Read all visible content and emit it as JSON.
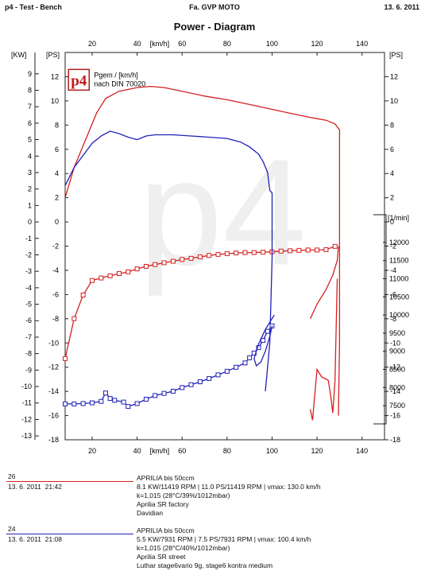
{
  "header": {
    "left": "p4 - Test - Bench",
    "center": "Fa. GVP MOTO",
    "right": "13. 6. 2011"
  },
  "chart_data": {
    "type": "line",
    "title": "Power - Diagram",
    "xlabel": "[km/h]",
    "xlim": [
      8,
      150
    ],
    "xticks": [
      20,
      40,
      60,
      80,
      100,
      120,
      140
    ],
    "axes": {
      "kw": {
        "unit": "[KW]",
        "lim": [
          -13,
          10
        ],
        "ticks": [
          -13,
          -12,
          -11,
          -10,
          -9,
          -8,
          -7,
          -6,
          -5,
          -4,
          -3,
          -2,
          -1,
          0,
          1,
          2,
          3,
          4,
          5,
          6,
          7,
          8,
          9
        ]
      },
      "ps": {
        "unit": "[PS]",
        "lim": [
          -18,
          14
        ],
        "ticks": [
          -18,
          -16,
          -14,
          -12,
          -10,
          -8,
          -6,
          -4,
          -2,
          0,
          2,
          4,
          6,
          8,
          10,
          12
        ]
      },
      "rpm": {
        "unit": "[1/min]",
        "lim": [
          7000,
          12500
        ],
        "ticks": [
          7500,
          8000,
          8500,
          9000,
          9500,
          10000,
          10500,
          11000,
          11500,
          12000
        ]
      }
    },
    "inset": {
      "logo": "p4",
      "line1": "Pgem / [km/h]",
      "line2": "nach DIN 70020"
    },
    "watermark": "p4",
    "series": [
      {
        "id": "26",
        "color": "#d42020",
        "kind": "power",
        "axis": "ps",
        "points": [
          [
            8,
            2
          ],
          [
            12,
            4.5
          ],
          [
            18,
            7.2
          ],
          [
            22,
            9
          ],
          [
            26,
            10.2
          ],
          [
            32,
            10.8
          ],
          [
            40,
            11.1
          ],
          [
            46,
            11.2
          ],
          [
            52,
            11.1
          ],
          [
            60,
            10.8
          ],
          [
            70,
            10.4
          ],
          [
            80,
            10.1
          ],
          [
            90,
            9.7
          ],
          [
            100,
            9.3
          ],
          [
            110,
            8.9
          ],
          [
            118,
            8.6
          ],
          [
            124,
            8.4
          ],
          [
            128,
            8.1
          ],
          [
            130,
            7.6
          ],
          [
            130,
            -10
          ],
          [
            129.5,
            -16
          ]
        ]
      },
      {
        "id": "26",
        "color": "#d42020",
        "kind": "rpm",
        "axis": "rpm",
        "markers": true,
        "points": [
          [
            8,
            8800
          ],
          [
            12,
            9900
          ],
          [
            16,
            10550
          ],
          [
            20,
            10950
          ],
          [
            24,
            11020
          ],
          [
            28,
            11080
          ],
          [
            32,
            11140
          ],
          [
            36,
            11190
          ],
          [
            40,
            11270
          ],
          [
            44,
            11340
          ],
          [
            48,
            11390
          ],
          [
            52,
            11440
          ],
          [
            56,
            11480
          ],
          [
            60,
            11530
          ],
          [
            64,
            11560
          ],
          [
            68,
            11600
          ],
          [
            72,
            11640
          ],
          [
            76,
            11670
          ],
          [
            80,
            11690
          ],
          [
            84,
            11710
          ],
          [
            88,
            11720
          ],
          [
            92,
            11720
          ],
          [
            96,
            11730
          ],
          [
            100,
            11740
          ],
          [
            104,
            11760
          ],
          [
            108,
            11770
          ],
          [
            112,
            11780
          ],
          [
            116,
            11790
          ],
          [
            120,
            11790
          ],
          [
            124,
            11800
          ],
          [
            128,
            11890
          ]
        ]
      },
      {
        "id": "26",
        "color": "#d42020",
        "kind": "rpm-end",
        "axis": "rpm",
        "points": [
          [
            117,
            9900
          ],
          [
            120,
            10300
          ],
          [
            124,
            10700
          ],
          [
            127,
            11100
          ],
          [
            129,
            11500
          ],
          [
            129.5,
            11900
          ]
        ]
      },
      {
        "id": "26",
        "color": "#d42020",
        "kind": "rpm-runout",
        "axis": "rpm",
        "points": [
          [
            117,
            7400
          ],
          [
            118,
            7100
          ],
          [
            119,
            7800
          ],
          [
            120,
            8500
          ],
          [
            122,
            8300
          ],
          [
            125,
            8200
          ],
          [
            126,
            7800
          ],
          [
            127,
            7300
          ],
          [
            128,
            8200
          ],
          [
            129,
            11000
          ]
        ]
      },
      {
        "id": "24",
        "color": "#2020b8",
        "kind": "power",
        "axis": "ps",
        "points": [
          [
            8,
            3
          ],
          [
            12,
            4.5
          ],
          [
            16,
            5.5
          ],
          [
            20,
            6.5
          ],
          [
            24,
            7.1
          ],
          [
            28,
            7.5
          ],
          [
            32,
            7.3
          ],
          [
            36,
            7
          ],
          [
            40,
            6.8
          ],
          [
            44,
            7.1
          ],
          [
            48,
            7.2
          ],
          [
            56,
            7.2
          ],
          [
            64,
            7.1
          ],
          [
            72,
            7
          ],
          [
            80,
            6.9
          ],
          [
            86,
            6.6
          ],
          [
            90,
            6.2
          ],
          [
            94,
            5.6
          ],
          [
            96,
            5
          ],
          [
            98,
            4.1
          ],
          [
            99,
            2.6
          ],
          [
            100,
            2.4
          ],
          [
            100,
            -3
          ],
          [
            99,
            -10
          ],
          [
            97,
            -14
          ]
        ]
      },
      {
        "id": "24",
        "color": "#2020b8",
        "kind": "rpm",
        "axis": "rpm",
        "markers": true,
        "points": [
          [
            8,
            7550
          ],
          [
            12,
            7550
          ],
          [
            16,
            7560
          ],
          [
            20,
            7580
          ],
          [
            24,
            7620
          ],
          [
            26,
            7850
          ],
          [
            28,
            7700
          ],
          [
            30,
            7650
          ],
          [
            34,
            7600
          ],
          [
            36,
            7480
          ],
          [
            40,
            7560
          ],
          [
            44,
            7680
          ],
          [
            48,
            7780
          ],
          [
            52,
            7840
          ],
          [
            56,
            7900
          ],
          [
            60,
            8000
          ],
          [
            64,
            8080
          ],
          [
            68,
            8160
          ],
          [
            72,
            8250
          ],
          [
            76,
            8350
          ],
          [
            80,
            8450
          ],
          [
            84,
            8560
          ],
          [
            88,
            8680
          ],
          [
            90,
            8820
          ],
          [
            92,
            8950
          ],
          [
            94,
            9100
          ],
          [
            96,
            9300
          ],
          [
            98,
            9550
          ],
          [
            100,
            9700
          ]
        ]
      },
      {
        "id": "24",
        "color": "#2020b8",
        "kind": "rpm-loop",
        "axis": "rpm",
        "points": [
          [
            100,
            9700
          ],
          [
            99,
            9400
          ],
          [
            97,
            9000
          ],
          [
            95,
            8700
          ],
          [
            93,
            8600
          ],
          [
            92,
            8800
          ],
          [
            94,
            9200
          ],
          [
            97,
            9600
          ],
          [
            99,
            9800
          ],
          [
            101,
            10000
          ]
        ]
      }
    ]
  },
  "legend": [
    {
      "id": "26",
      "date": "13. 6. 2011",
      "time": "21:42",
      "color": "#d42020",
      "line1": "APRILIA bis      50ccm",
      "line2": "8.1 KW/11419 RPM  |  11.0 PS/11419 RPM  |  vmax: 130.0 km/h",
      "line3": "k=1,015 (28°C/39%/1012mbar)",
      "line4": "Aprilia SR factory",
      "line5": "Davidian"
    },
    {
      "id": "24",
      "date": "13. 6. 2011",
      "time": "21:08",
      "color": "#2020b8",
      "line1": "APRILIA bis      50ccm",
      "line2": "5.5 KW/7931 RPM  |  7.5 PS/7931 RPM  |  vmax: 100.4 km/h",
      "line3": "k=1,015 (28°C/40%/1012mbar)",
      "line4": "Aprilia SR street",
      "line5": "Luthar stage6vario 9g, stage6 kontra medium"
    }
  ]
}
